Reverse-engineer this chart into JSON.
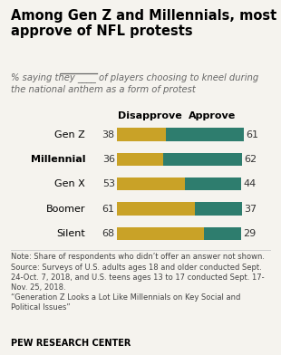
{
  "title": "Among Gen Z and Millennials, most\napprove of NFL protests",
  "subtitle_part1": "% saying they ",
  "subtitle_underline": "____",
  "subtitle_part2": " of players choosing to kneel during\nthe national anthem as a form of protest",
  "categories": [
    "Gen Z",
    "Millennial",
    "Gen X",
    "Boomer",
    "Silent"
  ],
  "disapprove": [
    38,
    36,
    53,
    61,
    68
  ],
  "approve": [
    61,
    62,
    44,
    37,
    29
  ],
  "disapprove_color": "#C9A227",
  "approve_color": "#2E7D6E",
  "bg_color": "#f5f3ee",
  "bar_height": 0.52,
  "col_header_disapprove": "Disapprove",
  "col_header_approve": "Approve",
  "note": "Note: Share of respondents who didn’t offer an answer not shown.\nSource: Surveys of U.S. adults ages 18 and older conducted Sept.\n24-Oct. 7, 2018, and U.S. teens ages 13 to 17 conducted Sept. 17-\nNov. 25, 2018.\n“Generation Z Looks a Lot Like Millennials on Key Social and\nPolitical Issues”",
  "footer": "PEW RESEARCH CENTER",
  "scale": 1.3
}
